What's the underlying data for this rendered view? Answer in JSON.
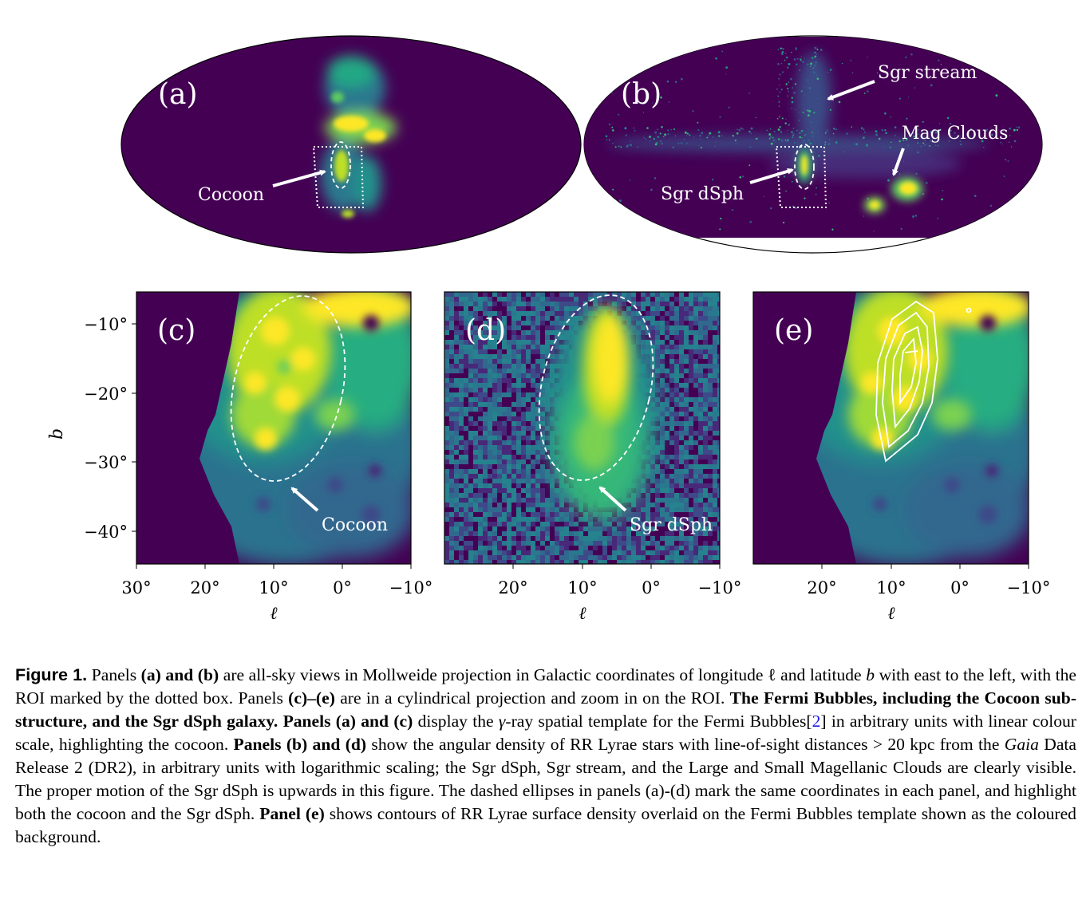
{
  "panels": {
    "a": {
      "label": "(a)",
      "annotation": "Cocoon"
    },
    "b": {
      "label": "(b)",
      "annotations": [
        "Sgr stream",
        "Mag Clouds",
        "Sgr dSph"
      ]
    },
    "c": {
      "label": "(c)",
      "annotation": "Cocoon"
    },
    "d": {
      "label": "(d)",
      "annotation": "Sgr dSph"
    },
    "e": {
      "label": "(e)"
    }
  },
  "axes": {
    "ylabel": "b",
    "xlabel": "ℓ",
    "yticks": [
      "−10°",
      "−20°",
      "−30°",
      "−40°"
    ],
    "xticks_c": [
      "30°",
      "20°",
      "10°",
      "0°",
      "−10°"
    ],
    "xticks_de": [
      "20°",
      "10°",
      "0°",
      "−10°"
    ]
  },
  "colors": {
    "viridis_dark": "#440154",
    "viridis_teal": "#21918c",
    "viridis_yellow": "#fde725",
    "overlay": "#ffffff"
  },
  "caption": {
    "label": "Figure 1.",
    "s1": "Panels",
    "b1": "(a) and (b)",
    "s2": "are all-sky views in Mollweide projection in Galactic coordinates of longitude ℓ and latitude",
    "i1": "b",
    "s3": "with east to the left, with the ROI marked by the dotted box. Panels",
    "b2": "(c)–(e)",
    "s4": "are in a cylindrical projection and zoom in on the ROI.",
    "b3": "The Fermi Bubbles, including the Cocoon sub-structure, and the Sgr dSph galaxy. Panels (a) and (c)",
    "s5": "display the",
    "i2": "γ",
    "s6": "-ray spatial template for the Fermi Bubbles[",
    "ref": "2",
    "s7": "] in arbitrary units with linear colour scale, highlighting the cocoon.",
    "b4": "Panels (b) and (d)",
    "s8": "show the angular density of RR Lyrae stars with line-of-sight distances > 20 kpc from the",
    "i3": "Gaia",
    "s9": "Data Release 2 (DR2), in arbitrary units with logarithmic scaling; the Sgr dSph, Sgr stream, and the Large and Small Magellanic Clouds are clearly visible. The proper motion of the Sgr dSph is upwards in this figure. The dashed ellipses in panels (a)-(d) mark the same coordinates in each panel, and highlight both the cocoon and the Sgr dSph.",
    "b5": "Panel (e)",
    "s10": "shows contours of RR Lyrae surface density overlaid on the Fermi Bubbles template shown as the coloured background."
  }
}
